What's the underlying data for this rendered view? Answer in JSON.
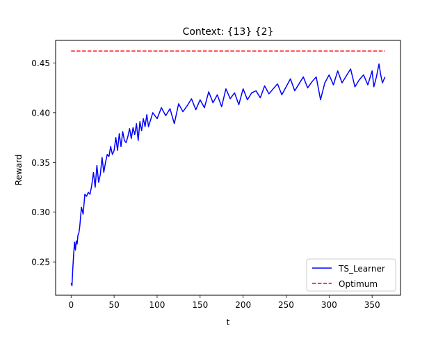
{
  "chart_data": {
    "type": "line",
    "title": "Context: {13} {2}",
    "xlabel": "t",
    "ylabel": "Reward",
    "xlim": [
      -18,
      383
    ],
    "ylim": [
      0.2165,
      0.4727
    ],
    "xticks": [
      0,
      50,
      100,
      150,
      200,
      250,
      300,
      350
    ],
    "yticks": [
      0.25,
      0.3,
      0.35,
      0.4,
      0.45
    ],
    "xtick_labels": [
      "0",
      "50",
      "100",
      "150",
      "200",
      "250",
      "300",
      "350"
    ],
    "ytick_labels": [
      "0.25",
      "0.30",
      "0.35",
      "0.40",
      "0.45"
    ],
    "grid": false,
    "legend_position": "lower-right",
    "series": [
      {
        "name": "TS_Learner",
        "color": "#0000ff",
        "style": "solid",
        "x": [
          0,
          1,
          2,
          3,
          4,
          5,
          6,
          7,
          8,
          9,
          10,
          12,
          14,
          16,
          18,
          20,
          22,
          24,
          26,
          28,
          30,
          32,
          34,
          36,
          38,
          40,
          42,
          44,
          46,
          48,
          50,
          52,
          54,
          56,
          58,
          60,
          62,
          64,
          66,
          68,
          70,
          72,
          74,
          76,
          78,
          80,
          82,
          84,
          86,
          88,
          90,
          95,
          100,
          105,
          110,
          115,
          120,
          125,
          130,
          135,
          140,
          145,
          150,
          155,
          160,
          165,
          170,
          175,
          180,
          185,
          190,
          195,
          200,
          205,
          210,
          215,
          220,
          225,
          230,
          235,
          240,
          245,
          250,
          255,
          260,
          265,
          270,
          275,
          280,
          285,
          290,
          295,
          300,
          305,
          310,
          315,
          320,
          325,
          330,
          335,
          340,
          345,
          350,
          352,
          355,
          358,
          360,
          362,
          365
        ],
        "y": [
          0.229,
          0.226,
          0.244,
          0.258,
          0.27,
          0.262,
          0.271,
          0.268,
          0.277,
          0.279,
          0.285,
          0.305,
          0.298,
          0.318,
          0.316,
          0.32,
          0.318,
          0.327,
          0.34,
          0.325,
          0.347,
          0.33,
          0.338,
          0.355,
          0.34,
          0.35,
          0.358,
          0.356,
          0.366,
          0.358,
          0.362,
          0.375,
          0.362,
          0.379,
          0.366,
          0.381,
          0.372,
          0.37,
          0.376,
          0.384,
          0.374,
          0.385,
          0.378,
          0.389,
          0.372,
          0.391,
          0.382,
          0.394,
          0.386,
          0.398,
          0.386,
          0.4,
          0.394,
          0.405,
          0.397,
          0.404,
          0.389,
          0.409,
          0.401,
          0.407,
          0.414,
          0.403,
          0.413,
          0.405,
          0.421,
          0.41,
          0.418,
          0.406,
          0.424,
          0.414,
          0.42,
          0.408,
          0.424,
          0.413,
          0.42,
          0.422,
          0.415,
          0.427,
          0.419,
          0.424,
          0.429,
          0.418,
          0.426,
          0.434,
          0.422,
          0.429,
          0.436,
          0.425,
          0.431,
          0.436,
          0.413,
          0.43,
          0.438,
          0.428,
          0.442,
          0.43,
          0.437,
          0.444,
          0.426,
          0.433,
          0.438,
          0.428,
          0.442,
          0.426,
          0.436,
          0.449,
          0.438,
          0.43,
          0.436
        ]
      },
      {
        "name": "Optimum",
        "color": "#ff0000",
        "style": "dashed",
        "x": [
          0,
          365
        ],
        "y": [
          0.462,
          0.462
        ]
      }
    ]
  }
}
